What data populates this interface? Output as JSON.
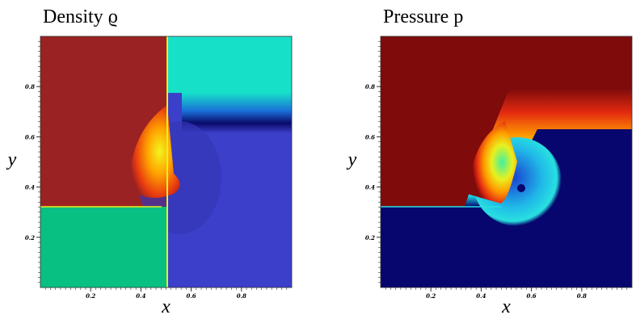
{
  "chart_data": [
    {
      "type": "heatmap",
      "title": "Density ϱ",
      "xlabel": "x",
      "ylabel": "y",
      "xlim": [
        0,
        1
      ],
      "ylim": [
        0,
        1
      ],
      "xticks": [
        0.2,
        0.4,
        0.6,
        0.8
      ],
      "yticks": [
        0.2,
        0.4,
        0.6,
        0.8
      ]
    },
    {
      "type": "heatmap",
      "title": "Pressure p",
      "xlabel": "x",
      "ylabel": "y",
      "xlim": [
        0,
        1
      ],
      "ylim": [
        0,
        1
      ],
      "xticks": [
        0.2,
        0.4,
        0.6,
        0.8
      ],
      "yticks": [
        0.2,
        0.4,
        0.6,
        0.8
      ]
    }
  ]
}
